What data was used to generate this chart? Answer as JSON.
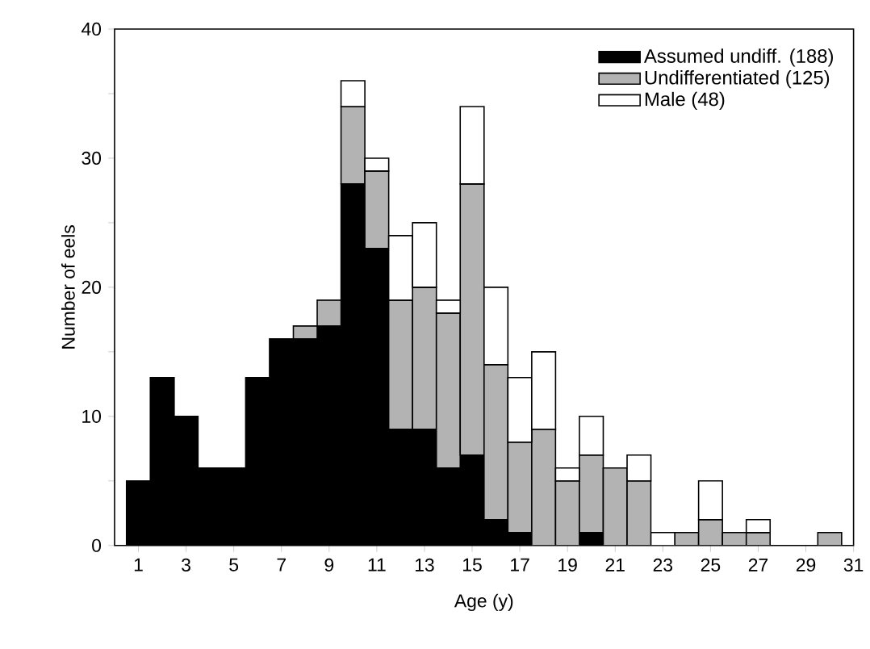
{
  "chart_data": {
    "type": "bar",
    "stacked": true,
    "xlabel": "Age (y)",
    "ylabel": "Number of eels",
    "x": [
      1,
      2,
      3,
      4,
      5,
      6,
      7,
      8,
      9,
      10,
      11,
      12,
      13,
      14,
      15,
      16,
      17,
      18,
      19,
      20,
      21,
      22,
      23,
      24,
      25,
      26,
      27,
      28,
      29,
      30
    ],
    "series": [
      {
        "name": "Assumed undiff. (188)",
        "color": "#000000",
        "values": [
          5,
          13,
          10,
          6,
          6,
          13,
          16,
          16,
          17,
          28,
          23,
          9,
          9,
          6,
          7,
          2,
          1,
          0,
          0,
          1,
          0,
          0,
          0,
          0,
          0,
          0,
          0,
          0,
          0,
          0
        ]
      },
      {
        "name": "Undifferentiated (125)",
        "color": "#b3b3b3",
        "values": [
          0,
          0,
          0,
          0,
          0,
          0,
          0,
          1,
          2,
          6,
          6,
          10,
          11,
          12,
          21,
          12,
          7,
          9,
          5,
          6,
          6,
          5,
          0,
          1,
          2,
          1,
          1,
          0,
          0,
          1
        ]
      },
      {
        "name": "Male (48)",
        "color": "#ffffff",
        "values": [
          0,
          0,
          0,
          0,
          0,
          0,
          0,
          0,
          0,
          2,
          1,
          5,
          5,
          1,
          6,
          6,
          5,
          6,
          1,
          3,
          0,
          2,
          1,
          0,
          3,
          0,
          1,
          0,
          0,
          0
        ]
      }
    ],
    "xlim": [
      0,
      31
    ],
    "xticks": [
      1,
      3,
      5,
      7,
      9,
      11,
      13,
      15,
      17,
      19,
      21,
      23,
      25,
      27,
      29,
      31
    ],
    "ylim": [
      0,
      40
    ],
    "yticks": [
      0,
      {
        "value": 5,
        "label": null
      },
      10,
      {
        "value": 15,
        "label": null
      },
      20,
      {
        "value": 25,
        "label": null
      },
      30,
      {
        "value": 35,
        "label": null
      },
      40
    ],
    "grid": false,
    "legend": "top right"
  }
}
